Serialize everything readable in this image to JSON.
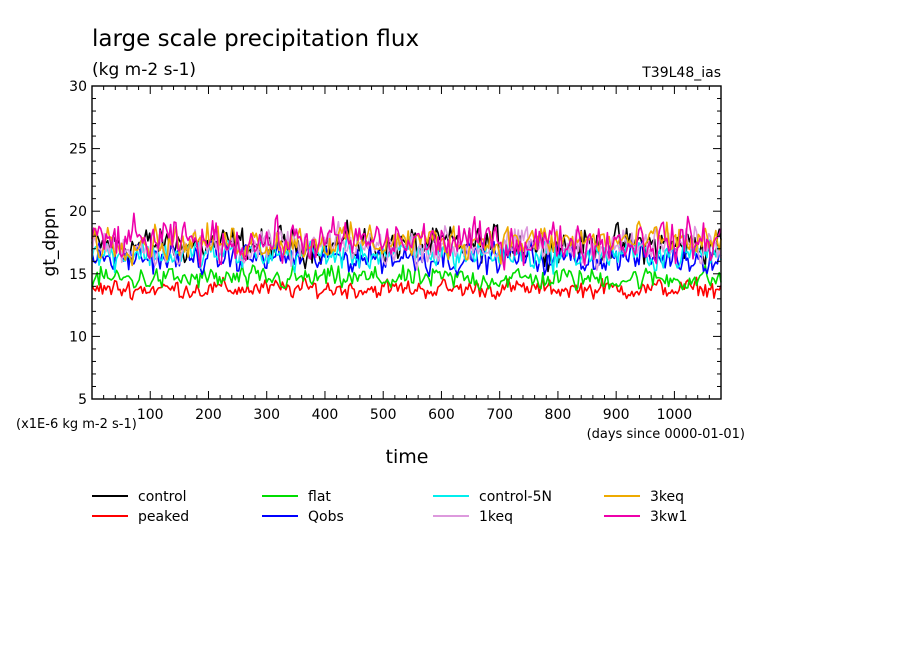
{
  "header": {
    "title": "large scale precipitation flux",
    "units": "(kg m-2 s-1)",
    "experiment": "T39L48_ias"
  },
  "chart_data": {
    "type": "line",
    "title": "large scale precipitation flux",
    "ylabel": "gt_dppn",
    "xlabel": "time",
    "x_note": "(days since 0000-01-01)",
    "y_note": "(x1E-6 kg m-2 s-1)",
    "xlim": [
      0,
      1080
    ],
    "ylim": [
      5,
      30
    ],
    "x_ticks": [
      100,
      200,
      300,
      400,
      500,
      600,
      700,
      800,
      900,
      1000
    ],
    "y_ticks": [
      5,
      10,
      15,
      20,
      25,
      30
    ],
    "sample_interval_days": 3,
    "grid": false,
    "legend_position": "bottom",
    "series": [
      {
        "name": "control",
        "color": "#000000",
        "mean": 17.3,
        "amplitude": 1.5,
        "min": 13.0,
        "max": 21.0
      },
      {
        "name": "peaked",
        "color": "#ff0000",
        "mean": 13.8,
        "amplitude": 0.8,
        "min": 12.0,
        "max": 15.5
      },
      {
        "name": "flat",
        "color": "#00dd00",
        "mean": 14.6,
        "amplitude": 1.0,
        "min": 12.0,
        "max": 17.0
      },
      {
        "name": "Qobs",
        "color": "#0000ff",
        "mean": 16.3,
        "amplitude": 1.3,
        "min": 14.5,
        "max": 20.5
      },
      {
        "name": "control-5N",
        "color": "#00eeee",
        "mean": 16.6,
        "amplitude": 1.3,
        "min": 14.5,
        "max": 20.5
      },
      {
        "name": "1keq",
        "color": "#dd99dd",
        "mean": 17.2,
        "amplitude": 1.5,
        "min": 15.0,
        "max": 21.6
      },
      {
        "name": "3keq",
        "color": "#eeaa00",
        "mean": 17.6,
        "amplitude": 1.4,
        "min": 15.0,
        "max": 21.0
      },
      {
        "name": "3kw1",
        "color": "#ee00aa",
        "mean": 17.6,
        "amplitude": 1.7,
        "min": 15.0,
        "max": 21.3
      }
    ]
  }
}
